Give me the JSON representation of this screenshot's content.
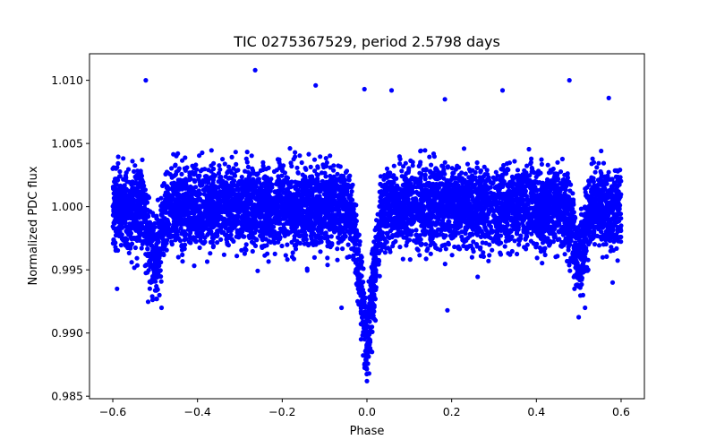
{
  "chart_data": {
    "type": "scatter",
    "title": "TIC 0275367529, period 2.5798 days",
    "xlabel": "Phase",
    "ylabel": "Normalized PDC flux",
    "xlim": [
      -0.655,
      0.655
    ],
    "ylim": [
      0.9848,
      1.0121
    ],
    "xticks": [
      -0.6,
      -0.4,
      -0.2,
      0.0,
      0.2,
      0.4,
      0.6
    ],
    "xtick_labels": [
      "−0.6",
      "−0.4",
      "−0.2",
      "0.0",
      "0.2",
      "0.4",
      "0.6"
    ],
    "yticks": [
      0.985,
      0.99,
      0.995,
      1.0,
      1.005,
      1.01
    ],
    "ytick_labels": [
      "0.985",
      "0.990",
      "0.995",
      "1.000",
      "1.005",
      "1.010"
    ],
    "grid": false,
    "marker_color": "#0000ff",
    "series": [
      {
        "x_range": [
          -0.6,
          0.6
        ],
        "baseline": 1.0,
        "scatter_sd": 0.0021,
        "primary_eclipse": {
          "center": 0.0,
          "depth": 0.011,
          "half_width": 0.04
        },
        "secondary_eclipse": {
          "centers": [
            -0.5,
            0.5
          ],
          "depth": 0.0045,
          "half_width": 0.03
        },
        "values": [
          [
            0.0,
            0.9862
          ],
          [
            0.005,
            0.9868
          ],
          [
            -0.006,
            0.9875
          ],
          [
            0.012,
            0.9885
          ],
          [
            -0.014,
            0.9895
          ],
          [
            0.02,
            0.991
          ],
          [
            -0.022,
            0.9925
          ],
          [
            0.03,
            0.9945
          ],
          [
            -0.032,
            0.996
          ],
          [
            0.04,
            0.9975
          ],
          [
            -0.5,
            0.995
          ],
          [
            -0.49,
            0.993
          ],
          [
            -0.51,
            0.994
          ],
          [
            -0.485,
            0.992
          ],
          [
            0.5,
            0.995
          ],
          [
            0.49,
            0.9935
          ],
          [
            0.51,
            0.993
          ],
          [
            0.515,
            0.992
          ],
          [
            -0.6,
            1.003
          ],
          [
            -0.45,
            1.004
          ],
          [
            -0.3,
            0.998
          ],
          [
            -0.2,
            1.0015
          ],
          [
            -0.1,
            0.999
          ],
          [
            0.1,
            1.002
          ],
          [
            0.2,
            0.9975
          ],
          [
            0.3,
            1.001
          ],
          [
            0.45,
            1.0035
          ],
          [
            0.6,
            0.9985
          ],
          [
            -0.522,
            1.01
          ],
          [
            -0.264,
            1.0108
          ],
          [
            -0.121,
            1.0096
          ],
          [
            -0.006,
            1.0093
          ],
          [
            0.058,
            1.0092
          ],
          [
            0.184,
            1.0085
          ],
          [
            0.32,
            1.0092
          ],
          [
            0.478,
            1.01
          ],
          [
            0.571,
            1.0086
          ],
          [
            -0.06,
            0.992
          ],
          [
            0.19,
            0.9918
          ],
          [
            -0.59,
            0.9935
          ],
          [
            0.58,
            0.994
          ]
        ]
      }
    ]
  }
}
